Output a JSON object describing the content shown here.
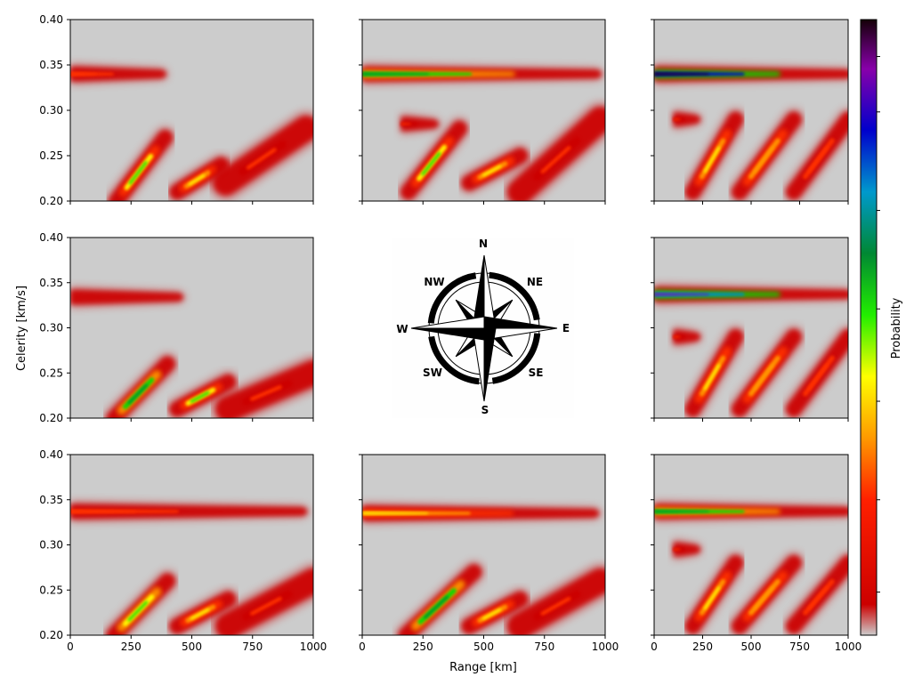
{
  "chart_data": {
    "type": "heatmap",
    "layout": {
      "rows": 3,
      "cols": 3,
      "center_panel": "compass rose"
    },
    "xlabel": "Range [km]",
    "ylabel": "Celerity [km/s]",
    "colorbar_label": "Probability",
    "xlim": [
      0,
      1000
    ],
    "ylim": [
      0.2,
      0.4
    ],
    "x_ticks": [
      "0",
      "250",
      "500",
      "750",
      "1000"
    ],
    "y_ticks": [
      "0.20",
      "0.25",
      "0.30",
      "0.35",
      "0.40"
    ],
    "colormap": [
      "#cccccc",
      "#cc0000",
      "#ff3300",
      "#ff9900",
      "#ffff00",
      "#00dd00",
      "#008833",
      "#0088cc",
      "#0000cc",
      "#8800aa",
      "#200010"
    ],
    "compass_labels": [
      "N",
      "NE",
      "E",
      "SE",
      "S",
      "SW",
      "W",
      "NW"
    ],
    "panels": [
      {
        "direction": "NW",
        "features": [
          {
            "x": [
              0,
              380
            ],
            "y": 0.34,
            "peak": 0.2
          },
          {
            "x": [
              190,
              390
            ],
            "y": [
              0.2,
              0.27
            ],
            "peak": 0.45
          },
          {
            "x": [
              440,
              620
            ],
            "y": [
              0.21,
              0.24
            ],
            "peak": 0.35
          },
          {
            "x": [
              640,
              970
            ],
            "y": [
              0.22,
              0.28
            ],
            "peak": 0.15
          }
        ]
      },
      {
        "direction": "N",
        "features": [
          {
            "x": [
              0,
              970
            ],
            "y": 0.34,
            "peak": 0.6
          },
          {
            "x": [
              160,
              300
            ],
            "y": 0.285,
            "peak": 0.15
          },
          {
            "x": [
              190,
              400
            ],
            "y": [
              0.21,
              0.28
            ],
            "peak": 0.45
          },
          {
            "x": [
              440,
              650
            ],
            "y": [
              0.22,
              0.25
            ],
            "peak": 0.35
          },
          {
            "x": [
              650,
              980
            ],
            "y": [
              0.21,
              0.29
            ],
            "peak": 0.15
          }
        ]
      },
      {
        "direction": "NE",
        "features": [
          {
            "x": [
              0,
              1000
            ],
            "y": 0.34,
            "peak": 0.95
          },
          {
            "x": [
              100,
              220
            ],
            "y": 0.29,
            "peak": 0.15
          },
          {
            "x": [
              200,
              420
            ],
            "y": [
              0.21,
              0.29
            ],
            "peak": 0.35
          },
          {
            "x": [
              440,
              720
            ],
            "y": [
              0.21,
              0.29
            ],
            "peak": 0.3
          },
          {
            "x": [
              720,
              1000
            ],
            "y": [
              0.21,
              0.29
            ],
            "peak": 0.2
          }
        ]
      },
      {
        "direction": "W",
        "features": [
          {
            "x": [
              0,
              450
            ],
            "y": 0.334,
            "peak": 0.1
          },
          {
            "x": [
              180,
              400
            ],
            "y": [
              0.2,
              0.26
            ],
            "peak": 0.55
          },
          {
            "x": [
              440,
              650
            ],
            "y": [
              0.21,
              0.24
            ],
            "peak": 0.45
          },
          {
            "x": [
              650,
              1000
            ],
            "y": [
              0.21,
              0.25
            ],
            "peak": 0.15
          }
        ]
      },
      {
        "direction": "E",
        "features": [
          {
            "x": [
              0,
              1000
            ],
            "y": 0.337,
            "peak": 0.85
          },
          {
            "x": [
              100,
              220
            ],
            "y": 0.29,
            "peak": 0.15
          },
          {
            "x": [
              200,
              420
            ],
            "y": [
              0.21,
              0.29
            ],
            "peak": 0.35
          },
          {
            "x": [
              440,
              720
            ],
            "y": [
              0.21,
              0.29
            ],
            "peak": 0.3
          },
          {
            "x": [
              720,
              1000
            ],
            "y": [
              0.21,
              0.29
            ],
            "peak": 0.2
          }
        ]
      },
      {
        "direction": "SW",
        "features": [
          {
            "x": [
              0,
              960
            ],
            "y": 0.337,
            "peak": 0.2
          },
          {
            "x": [
              180,
              400
            ],
            "y": [
              0.2,
              0.26
            ],
            "peak": 0.5
          },
          {
            "x": [
              440,
              650
            ],
            "y": [
              0.21,
              0.24
            ],
            "peak": 0.35
          },
          {
            "x": [
              650,
              1000
            ],
            "y": [
              0.21,
              0.26
            ],
            "peak": 0.15
          }
        ]
      },
      {
        "direction": "S",
        "features": [
          {
            "x": [
              0,
              960
            ],
            "y": 0.335,
            "peak": 0.4
          },
          {
            "x": [
              180,
              460
            ],
            "y": [
              0.2,
              0.27
            ],
            "peak": 0.55
          },
          {
            "x": [
              440,
              650
            ],
            "y": [
              0.21,
              0.24
            ],
            "peak": 0.35
          },
          {
            "x": [
              650,
              980
            ],
            "y": [
              0.21,
              0.26
            ],
            "peak": 0.15
          }
        ]
      },
      {
        "direction": "SE",
        "features": [
          {
            "x": [
              0,
              1000
            ],
            "y": 0.337,
            "peak": 0.6
          },
          {
            "x": [
              100,
              220
            ],
            "y": 0.295,
            "peak": 0.15
          },
          {
            "x": [
              200,
              420
            ],
            "y": [
              0.21,
              0.28
            ],
            "peak": 0.35
          },
          {
            "x": [
              440,
              720
            ],
            "y": [
              0.21,
              0.28
            ],
            "peak": 0.3
          },
          {
            "x": [
              720,
              1000
            ],
            "y": [
              0.21,
              0.28
            ],
            "peak": 0.2
          }
        ]
      }
    ]
  }
}
